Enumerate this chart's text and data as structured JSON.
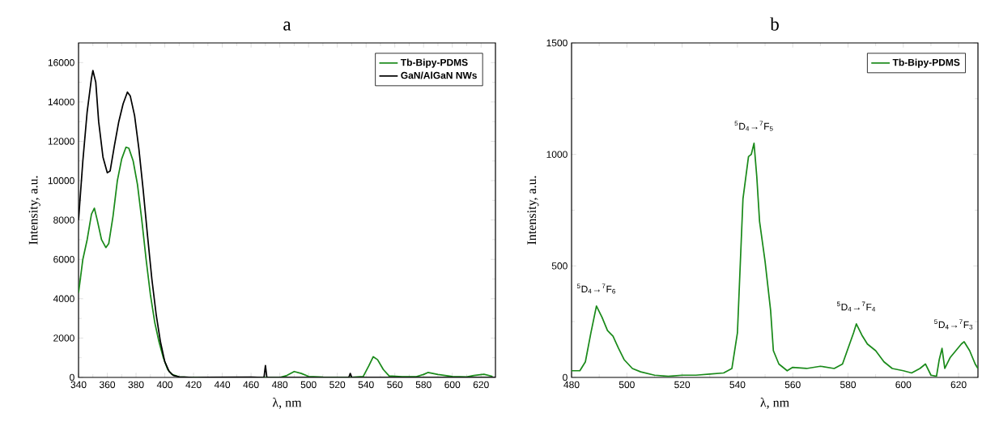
{
  "chart_data": [
    {
      "type": "line",
      "title": "a",
      "xlabel": "λ, nm",
      "ylabel": "Intensity, a.u.",
      "xlim": [
        340,
        630
      ],
      "ylim": [
        0,
        17000
      ],
      "xticks": [
        340,
        360,
        380,
        400,
        420,
        440,
        460,
        480,
        500,
        520,
        540,
        560,
        580,
        600,
        620
      ],
      "yticks": [
        0,
        2000,
        4000,
        6000,
        8000,
        10000,
        12000,
        14000,
        16000
      ],
      "legend": "top right",
      "grid": false,
      "marker": "none",
      "line_style": "solid",
      "series": [
        {
          "name": "Tb-Bipy-PDMS",
          "color": "#1a8a1a",
          "x": [
            340,
            343,
            346,
            349,
            351,
            353,
            356,
            359,
            361,
            364,
            367,
            370,
            373,
            375,
            378,
            381,
            384,
            387,
            390,
            393,
            396,
            399,
            402,
            405,
            410,
            420,
            480,
            485,
            490,
            495,
            500,
            510,
            530,
            538,
            542,
            545,
            548,
            552,
            556,
            565,
            575,
            580,
            583,
            590,
            600,
            610,
            615,
            622,
            628
          ],
          "values": [
            4300,
            6000,
            7000,
            8300,
            8600,
            8000,
            7000,
            6600,
            6800,
            8200,
            10000,
            11100,
            11700,
            11650,
            11000,
            9800,
            8000,
            6000,
            4200,
            2800,
            1800,
            1000,
            400,
            150,
            30,
            0,
            0,
            100,
            300,
            200,
            50,
            20,
            10,
            50,
            600,
            1050,
            900,
            400,
            80,
            40,
            40,
            150,
            250,
            150,
            50,
            30,
            100,
            160,
            50
          ]
        },
        {
          "name": "GaN/AlGaN NWs",
          "color": "#000000",
          "x": [
            340,
            343,
            346,
            349,
            350,
            352,
            354,
            357,
            360,
            362,
            365,
            368,
            371,
            374,
            376,
            379,
            382,
            385,
            388,
            391,
            394,
            397,
            400,
            403,
            406,
            410,
            420,
            460,
            469,
            470,
            471,
            528,
            529,
            530,
            630
          ],
          "values": [
            8000,
            11000,
            13500,
            15200,
            15600,
            15000,
            13000,
            11200,
            10400,
            10500,
            11800,
            13000,
            13900,
            14500,
            14300,
            13300,
            11600,
            9500,
            7200,
            5000,
            3200,
            1800,
            800,
            300,
            100,
            30,
            0,
            20,
            0,
            600,
            0,
            0,
            200,
            0,
            0
          ]
        }
      ]
    },
    {
      "type": "line",
      "title": "b",
      "xlabel": "λ, nm",
      "ylabel": "Intensity, a.u.",
      "xlim": [
        480,
        627
      ],
      "ylim": [
        0,
        1500
      ],
      "xticks": [
        480,
        500,
        520,
        540,
        560,
        580,
        600,
        620
      ],
      "yticks": [
        0,
        500,
        1000,
        1500
      ],
      "legend": "top right",
      "grid": false,
      "marker": "none",
      "line_style": "solid",
      "series": [
        {
          "name": "Tb-Bipy-PDMS",
          "color": "#1a8a1a",
          "x": [
            480,
            483,
            485,
            487,
            489,
            491,
            493,
            495,
            497,
            499,
            502,
            505,
            510,
            515,
            520,
            525,
            530,
            535,
            538,
            540,
            541,
            542,
            544,
            545,
            546,
            547,
            548,
            550,
            552,
            553,
            555,
            558,
            560,
            565,
            570,
            575,
            578,
            580,
            582,
            583,
            585,
            587,
            590,
            593,
            596,
            600,
            603,
            606,
            608,
            610,
            612,
            613,
            614,
            615,
            617,
            619,
            621,
            622,
            624,
            626,
            627
          ],
          "values": [
            30,
            30,
            70,
            200,
            320,
            270,
            210,
            185,
            130,
            80,
            40,
            25,
            10,
            5,
            10,
            10,
            15,
            20,
            40,
            200,
            500,
            800,
            990,
            1000,
            1050,
            900,
            700,
            520,
            300,
            120,
            60,
            30,
            45,
            40,
            50,
            40,
            60,
            130,
            200,
            240,
            190,
            150,
            120,
            70,
            40,
            30,
            20,
            40,
            60,
            10,
            5,
            80,
            130,
            40,
            90,
            120,
            150,
            160,
            120,
            60,
            40
          ]
        }
      ],
      "annotations": [
        {
          "text": "$^{5}$D$_{4}$→$^{7}$F$_{6}$",
          "x": 489,
          "y": 320
        },
        {
          "text": "$^{5}$D$_{4}$→$^{7}$F$_{5}$",
          "x": 546,
          "y": 1050
        },
        {
          "text": "$^{5}$D$_{4}$→$^{7}$F$_{4}$",
          "x": 583,
          "y": 240
        },
        {
          "text": "$^{5}$D$_{4}$→$^{7}$F$_{3}$",
          "x": 622,
          "y": 160
        }
      ]
    }
  ]
}
